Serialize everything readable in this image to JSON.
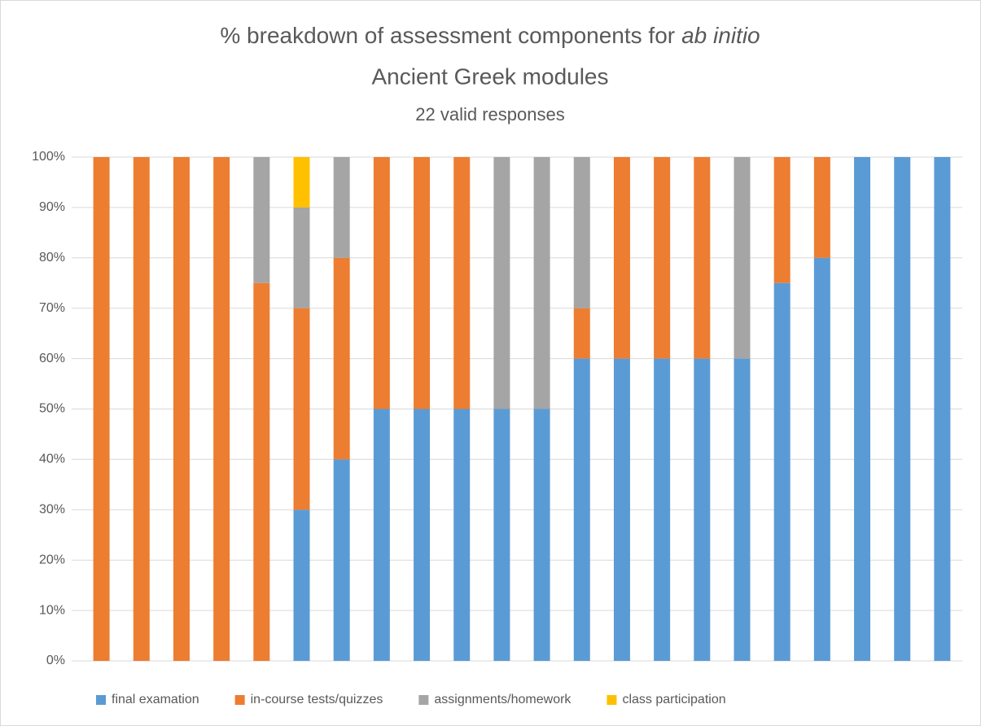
{
  "chart_data": {
    "type": "stacked_bar",
    "title_parts": [
      "% breakdown of assessment components for",
      "ab initio",
      "Ancient Greek modules"
    ],
    "subtitle": "22 valid responses",
    "categories": [
      null,
      null,
      null,
      null,
      null,
      null,
      null,
      null,
      null,
      null,
      null,
      null,
      null,
      null,
      null,
      null,
      null,
      null,
      null,
      null,
      null,
      null
    ],
    "series": [
      {
        "name": "final examation",
        "color": "#5b9bd5",
        "values": [
          0,
          0,
          0,
          0,
          0,
          30,
          40,
          50,
          50,
          50,
          50,
          50,
          60,
          60,
          60,
          60,
          60,
          75,
          80,
          100,
          100,
          100
        ]
      },
      {
        "name": "in-course tests/quizzes",
        "color": "#ed7d31",
        "values": [
          100,
          100,
          100,
          100,
          75,
          40,
          40,
          50,
          50,
          50,
          0,
          0,
          10,
          40,
          40,
          40,
          0,
          25,
          20,
          0,
          0,
          0
        ]
      },
      {
        "name": "assignments/homework",
        "color": "#a5a5a5",
        "values": [
          0,
          0,
          0,
          0,
          25,
          20,
          20,
          0,
          0,
          0,
          50,
          50,
          30,
          0,
          0,
          0,
          40,
          0,
          0,
          0,
          0,
          0
        ]
      },
      {
        "name": "class participation",
        "color": "#ffc000",
        "values": [
          0,
          0,
          0,
          0,
          0,
          10,
          0,
          0,
          0,
          0,
          0,
          0,
          0,
          0,
          0,
          0,
          0,
          0,
          0,
          0,
          0,
          0
        ]
      }
    ],
    "ylim": [
      0,
      100
    ],
    "yticks": [
      {
        "value": 0,
        "label": "0%"
      },
      {
        "value": 10,
        "label": "10%"
      },
      {
        "value": 20,
        "label": "20%"
      },
      {
        "value": 30,
        "label": "30%"
      },
      {
        "value": 40,
        "label": "40%"
      },
      {
        "value": 50,
        "label": "50%"
      },
      {
        "value": 60,
        "label": "60%"
      },
      {
        "value": 70,
        "label": "70%"
      },
      {
        "value": 80,
        "label": "80%"
      },
      {
        "value": 90,
        "label": "90%"
      },
      {
        "value": 100,
        "label": "100%"
      }
    ],
    "grid": true,
    "legend": "bottom"
  }
}
